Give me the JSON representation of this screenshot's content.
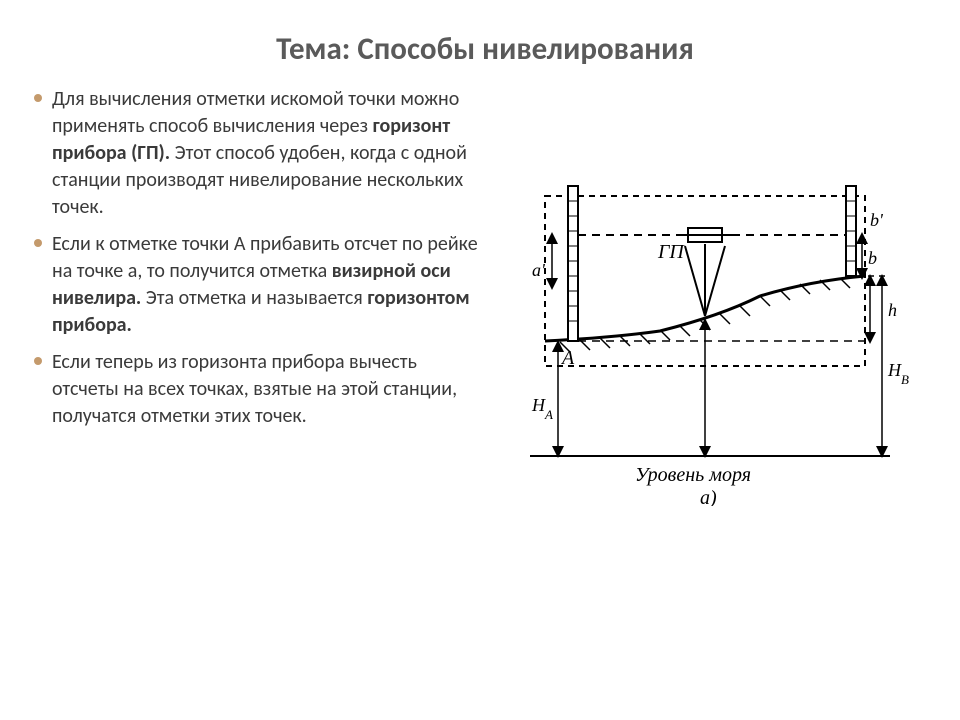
{
  "title": {
    "text": "Тема: Способы нивелирования",
    "fontsize": 31,
    "color": "#5a5a5a"
  },
  "bullets": [
    {
      "segments": [
        {
          "text": "Для вычисления отметки искомой точки можно применять способ вычисления через ",
          "bold": false
        },
        {
          "text": "горизонт прибора (ГП).",
          "bold": true
        },
        {
          "text": " Этот способ удобен, когда с одной станции производят нивелирование нескольких точек.",
          "bold": false
        }
      ]
    },
    {
      "segments": [
        {
          "text": "Если к отметке точки А прибавить отсчет по рейке на точке а, то получится отметка ",
          "bold": false
        },
        {
          "text": "визирной оси нивелира.",
          "bold": true
        },
        {
          "text": " Эта отметка и называется ",
          "bold": false
        },
        {
          "text": "горизонтом прибора.",
          "bold": true
        }
      ]
    },
    {
      "segments": [
        {
          "text": "Если теперь из горизонта прибора вычесть отсчеты на всех точках, взятые на этой станции, получатся отметки этих точек.",
          "bold": false
        }
      ]
    }
  ],
  "body_fontsize": 20,
  "bullet_color": "#c49a6c",
  "diagram": {
    "labels": {
      "gp": "ГП",
      "a_prime": "a'",
      "b_prime": "b'",
      "b_reading": "b",
      "h": "h",
      "A": "А",
      "Ha": "H_A",
      "Hb": "H_B",
      "sea_level": "Уровень моря",
      "sub": "а)"
    },
    "colors": {
      "stroke": "#000000",
      "background": "#ffffff"
    }
  }
}
